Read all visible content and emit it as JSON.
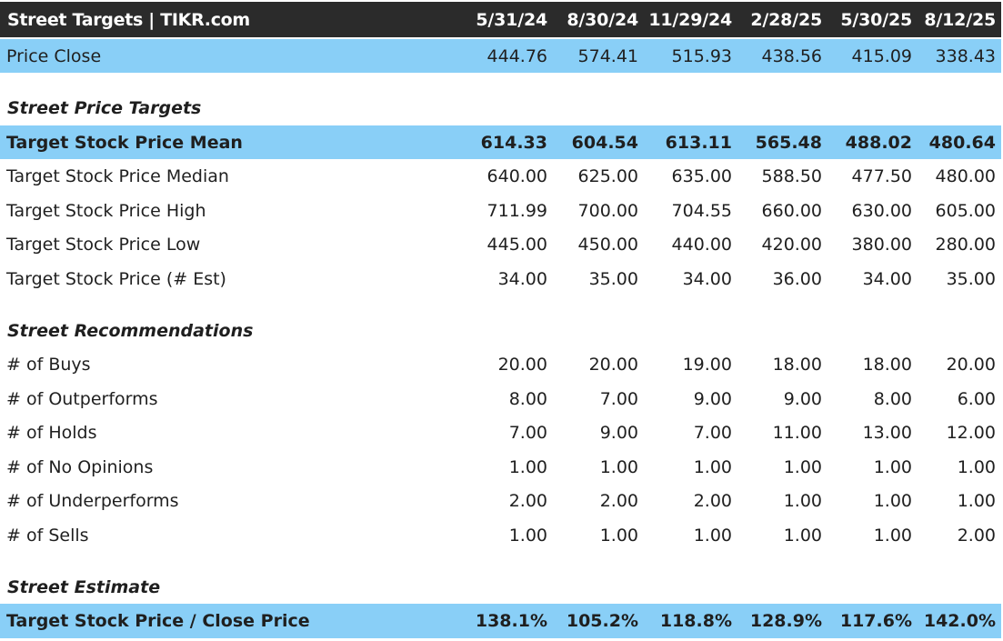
{
  "header": {
    "title": "Street Targets | TIKR.com",
    "dates": [
      "5/31/24",
      "8/30/24",
      "11/29/24",
      "2/28/25",
      "5/30/25",
      "8/12/25"
    ]
  },
  "price_close": {
    "label": "Price Close",
    "values": [
      "444.76",
      "574.41",
      "515.93",
      "438.56",
      "415.09",
      "338.43"
    ]
  },
  "street_price_targets": {
    "title": "Street Price Targets",
    "rows": [
      {
        "label": "Target Stock Price Mean",
        "values": [
          "614.33",
          "604.54",
          "613.11",
          "565.48",
          "488.02",
          "480.64"
        ]
      },
      {
        "label": "Target Stock Price Median",
        "values": [
          "640.00",
          "625.00",
          "635.00",
          "588.50",
          "477.50",
          "480.00"
        ]
      },
      {
        "label": "Target Stock Price High",
        "values": [
          "711.99",
          "700.00",
          "704.55",
          "660.00",
          "630.00",
          "605.00"
        ]
      },
      {
        "label": "Target Stock Price Low",
        "values": [
          "445.00",
          "450.00",
          "440.00",
          "420.00",
          "380.00",
          "280.00"
        ]
      },
      {
        "label": "Target Stock Price (# Est)",
        "values": [
          "34.00",
          "35.00",
          "34.00",
          "36.00",
          "34.00",
          "35.00"
        ]
      }
    ]
  },
  "street_recommendations": {
    "title": "Street Recommendations",
    "rows": [
      {
        "label": "# of Buys",
        "values": [
          "20.00",
          "20.00",
          "19.00",
          "18.00",
          "18.00",
          "20.00"
        ]
      },
      {
        "label": "# of Outperforms",
        "values": [
          "8.00",
          "7.00",
          "9.00",
          "9.00",
          "8.00",
          "6.00"
        ]
      },
      {
        "label": "# of Holds",
        "values": [
          "7.00",
          "9.00",
          "7.00",
          "11.00",
          "13.00",
          "12.00"
        ]
      },
      {
        "label": "# of No Opinions",
        "values": [
          "1.00",
          "1.00",
          "1.00",
          "1.00",
          "1.00",
          "1.00"
        ]
      },
      {
        "label": "# of Underperforms",
        "values": [
          "2.00",
          "2.00",
          "2.00",
          "1.00",
          "1.00",
          "1.00"
        ]
      },
      {
        "label": "# of Sells",
        "values": [
          "1.00",
          "1.00",
          "1.00",
          "1.00",
          "1.00",
          "2.00"
        ]
      }
    ]
  },
  "street_estimate": {
    "title": "Street Estimate",
    "rows": [
      {
        "label": "Target Stock Price / Close Price",
        "values": [
          "138.1%",
          "105.2%",
          "118.8%",
          "128.9%",
          "117.6%",
          "142.0%"
        ]
      }
    ]
  },
  "colors": {
    "header_bg": "#2b2b2b",
    "highlight_bg": "#89cff7",
    "text": "#1f1f1f"
  }
}
